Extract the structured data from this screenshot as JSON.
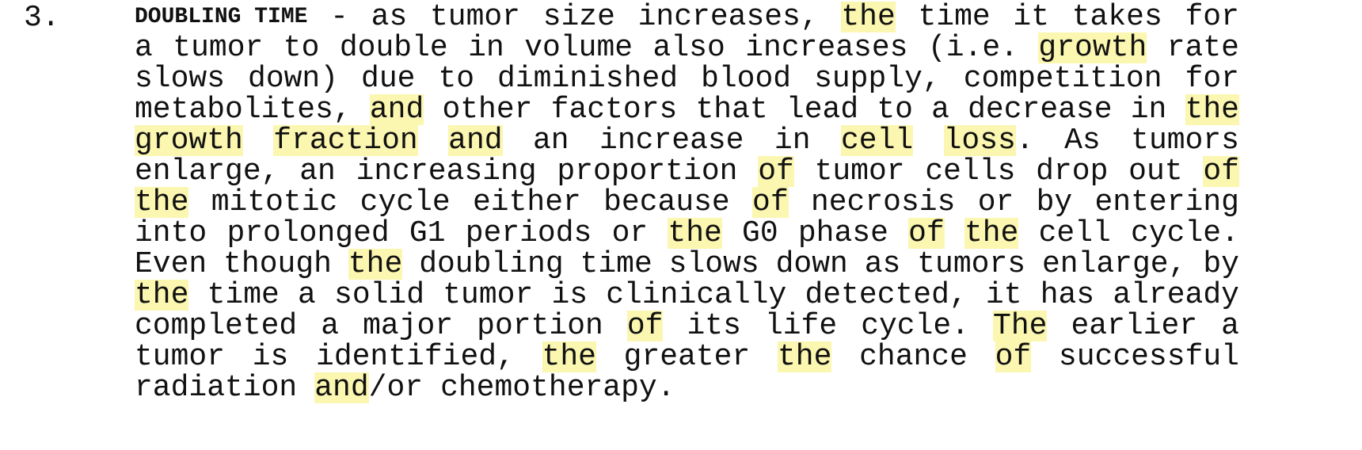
{
  "item_number": "3.",
  "heading": "DOUBLING TIME",
  "highlight_color": "#fbf6b0",
  "lines": [
    [
      {
        "t": "DOUBLING TIME",
        "heading": true
      },
      {
        "t": "-"
      },
      {
        "t": "as"
      },
      {
        "t": "tumor"
      },
      {
        "t": "size"
      },
      {
        "t": "increases,"
      },
      {
        "t": "the",
        "hl": true
      },
      {
        "t": "time"
      },
      {
        "t": "it"
      },
      {
        "t": "takes"
      },
      {
        "t": "for"
      }
    ],
    [
      {
        "t": "a"
      },
      {
        "t": "tumor"
      },
      {
        "t": "to"
      },
      {
        "t": "double"
      },
      {
        "t": "in"
      },
      {
        "t": "volume"
      },
      {
        "t": "also"
      },
      {
        "t": "increases"
      },
      {
        "t": "(i.e."
      },
      {
        "t": "growth",
        "hl": true
      },
      {
        "t": "rate"
      }
    ],
    [
      {
        "t": "slows"
      },
      {
        "t": "down)"
      },
      {
        "t": "due"
      },
      {
        "t": "to"
      },
      {
        "t": "diminished"
      },
      {
        "t": "blood"
      },
      {
        "t": "supply,"
      },
      {
        "t": "competition"
      },
      {
        "t": "for"
      }
    ],
    [
      {
        "t": "metabolites,"
      },
      {
        "t": "and",
        "hl": true
      },
      {
        "t": "other"
      },
      {
        "t": "factors"
      },
      {
        "t": "that"
      },
      {
        "t": "lead"
      },
      {
        "t": "to"
      },
      {
        "t": "a"
      },
      {
        "t": "decrease"
      },
      {
        "t": "in"
      },
      {
        "t": "the",
        "hl": true
      }
    ],
    [
      {
        "t": "growth",
        "hl": true
      },
      {
        "t": "fraction",
        "hl": true
      },
      {
        "t": "and",
        "hl": true
      },
      {
        "t": "an"
      },
      {
        "t": "increase"
      },
      {
        "t": "in"
      },
      {
        "t": "cell",
        "hl": true
      },
      {
        "parts": [
          {
            "t": "loss",
            "hl": true
          },
          {
            "t": "."
          }
        ]
      },
      {
        "t": "As"
      },
      {
        "t": "tumors"
      }
    ],
    [
      {
        "t": "enlarge,"
      },
      {
        "t": "an"
      },
      {
        "t": "increasing"
      },
      {
        "t": "proportion"
      },
      {
        "t": "of",
        "hl": true
      },
      {
        "t": "tumor"
      },
      {
        "t": "cells"
      },
      {
        "t": "drop"
      },
      {
        "t": "out"
      },
      {
        "t": "of",
        "hl": true
      }
    ],
    [
      {
        "t": "the",
        "hl": true
      },
      {
        "t": "mitotic"
      },
      {
        "t": "cycle"
      },
      {
        "t": "either"
      },
      {
        "t": "because"
      },
      {
        "t": "of",
        "hl": true
      },
      {
        "t": "necrosis"
      },
      {
        "t": "or"
      },
      {
        "t": "by"
      },
      {
        "t": "entering"
      }
    ],
    [
      {
        "t": "into"
      },
      {
        "t": "prolonged"
      },
      {
        "t": "G1"
      },
      {
        "t": "periods"
      },
      {
        "t": "or"
      },
      {
        "t": "the",
        "hl": true
      },
      {
        "t": "G0"
      },
      {
        "t": "phase"
      },
      {
        "t": "of",
        "hl": true
      },
      {
        "t": "the",
        "hl": true
      },
      {
        "t": "cell"
      },
      {
        "t": "cycle."
      }
    ],
    [
      {
        "t": "Even"
      },
      {
        "t": "though"
      },
      {
        "t": "the",
        "hl": true
      },
      {
        "t": "doubling"
      },
      {
        "t": "time"
      },
      {
        "t": "slows"
      },
      {
        "t": "down"
      },
      {
        "t": "as"
      },
      {
        "t": "tumors"
      },
      {
        "t": "enlarge,"
      },
      {
        "t": "by"
      }
    ],
    [
      {
        "t": "the",
        "hl": true
      },
      {
        "t": "time"
      },
      {
        "t": "a"
      },
      {
        "t": "solid"
      },
      {
        "t": "tumor"
      },
      {
        "t": "is"
      },
      {
        "t": "clinically"
      },
      {
        "t": "detected,"
      },
      {
        "t": "it"
      },
      {
        "t": "has"
      },
      {
        "t": "already"
      }
    ],
    [
      {
        "t": "completed"
      },
      {
        "t": "a"
      },
      {
        "t": "major"
      },
      {
        "t": "portion"
      },
      {
        "t": "of",
        "hl": true
      },
      {
        "t": "its"
      },
      {
        "t": "life"
      },
      {
        "t": "cycle."
      },
      {
        "t": "The",
        "hl": true
      },
      {
        "t": "earlier"
      },
      {
        "t": "a"
      }
    ],
    [
      {
        "t": "tumor"
      },
      {
        "t": "is"
      },
      {
        "t": "identified,"
      },
      {
        "t": "the",
        "hl": true
      },
      {
        "t": "greater"
      },
      {
        "t": "the",
        "hl": true
      },
      {
        "t": "chance"
      },
      {
        "t": "of",
        "hl": true
      },
      {
        "t": "successful"
      }
    ],
    [
      {
        "t": "radiation"
      },
      {
        "parts": [
          {
            "t": "and",
            "hl": true
          },
          {
            "t": "/or"
          }
        ]
      },
      {
        "t": "chemotherapy."
      }
    ]
  ]
}
